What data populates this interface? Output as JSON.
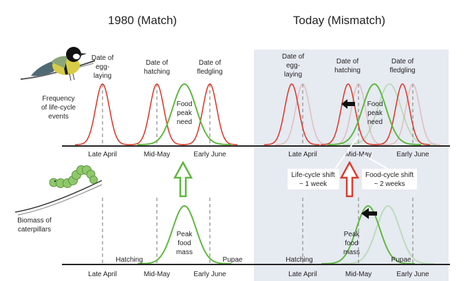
{
  "titles": {
    "left": "1980 (Match)",
    "right": "Today (Mismatch)"
  },
  "row_labels": {
    "top": [
      "Frequency",
      "of life-cycle",
      "events"
    ],
    "bottom": [
      "Biomass of",
      "caterpillars"
    ]
  },
  "bird_stages": {
    "egg_laying": [
      "Date of",
      "egg-",
      "laying"
    ],
    "hatching": [
      "Date of",
      "hatching"
    ],
    "fledgling": [
      "Date of",
      "fledgling"
    ]
  },
  "food_peak_need": [
    "Food",
    "peak",
    "need"
  ],
  "peak_food_mass": [
    "Peak",
    "food",
    "mass"
  ],
  "axis_ticks": {
    "late_april": "Late April",
    "mid_may": "Mid-May",
    "early_june": "Early June"
  },
  "caterpillar_stages": {
    "hatching": "Hatching",
    "pupae": "Pupae"
  },
  "shift_boxes": {
    "life_cycle": [
      "Life-cycle shift",
      "~ 1 week"
    ],
    "food_cycle": [
      "Food-cycle shift",
      "~ 2 weeks"
    ]
  },
  "colors": {
    "red_curve": "#d93b2b",
    "green_curve": "#5cb83c",
    "right_panel_bg": "#e6eaf1",
    "dashed": "#9a9a9a",
    "left_arrow": "#5cb83c",
    "right_arrow": "#d93b2b",
    "shift_arrow": "#111111"
  }
}
